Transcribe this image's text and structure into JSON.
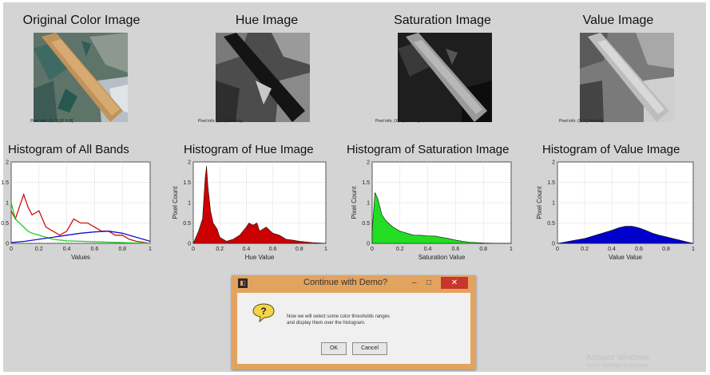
{
  "titles": {
    "original": "Original Color Image",
    "hue": "Hue Image",
    "saturation": "Saturation Image",
    "value": "Value Image"
  },
  "pixel_info": {
    "original": "Pixel info: (X, Y) [R G B]",
    "hue": "Pixel info: (X, Y) Intensity",
    "saturation": "Pixel info: (X, Y) Intensity",
    "value": "Pixel info: (X, Y) Intensity"
  },
  "chart_data": [
    {
      "type": "line",
      "title": "Histogram of All Bands",
      "xlabel": "Values",
      "ylabel": "",
      "xlim": [
        0,
        1
      ],
      "ylim": [
        0,
        2
      ],
      "xticks": [
        "0",
        "0.2",
        "0.4",
        "0.6",
        "0.8",
        "1"
      ],
      "yticks": [
        "0",
        "0.5",
        "1",
        "1.5",
        "2"
      ],
      "grid": true,
      "series": [
        {
          "color": "#cc1111",
          "x": [
            0.0,
            0.03,
            0.06,
            0.09,
            0.12,
            0.15,
            0.2,
            0.25,
            0.3,
            0.35,
            0.4,
            0.45,
            0.5,
            0.55,
            0.6,
            0.65,
            0.7,
            0.75,
            0.8,
            0.85,
            0.9,
            1.0
          ],
          "y": [
            0.8,
            0.6,
            0.9,
            1.2,
            0.9,
            0.7,
            0.8,
            0.4,
            0.3,
            0.2,
            0.3,
            0.6,
            0.5,
            0.5,
            0.4,
            0.3,
            0.3,
            0.2,
            0.2,
            0.1,
            0.05,
            0.0
          ]
        },
        {
          "color": "#22cc22",
          "x": [
            0.0,
            0.03,
            0.06,
            0.09,
            0.12,
            0.15,
            0.2,
            0.25,
            0.3,
            0.35,
            0.4,
            0.5,
            0.6,
            0.7,
            0.8,
            0.9,
            1.0
          ],
          "y": [
            1.0,
            0.6,
            0.5,
            0.4,
            0.3,
            0.25,
            0.2,
            0.15,
            0.1,
            0.08,
            0.06,
            0.05,
            0.04,
            0.03,
            0.02,
            0.01,
            0.0
          ]
        },
        {
          "color": "#1111cc",
          "x": [
            0.0,
            0.1,
            0.2,
            0.3,
            0.4,
            0.5,
            0.6,
            0.7,
            0.8,
            0.9,
            1.0
          ],
          "y": [
            0.02,
            0.05,
            0.1,
            0.15,
            0.2,
            0.25,
            0.28,
            0.3,
            0.25,
            0.15,
            0.05
          ]
        }
      ]
    },
    {
      "type": "area",
      "title": "Histogram of Hue Image",
      "xlabel": "Hue Value",
      "ylabel": "Pixel Count",
      "xlim": [
        0,
        1
      ],
      "ylim": [
        0,
        2
      ],
      "xticks": [
        "0",
        "0.2",
        "0.4",
        "0.6",
        "0.8",
        "1"
      ],
      "yticks": [
        "0",
        "0.5",
        "1",
        "1.5",
        "2"
      ],
      "grid": true,
      "series": [
        {
          "color": "#cc0000",
          "x": [
            0.0,
            0.04,
            0.07,
            0.09,
            0.1,
            0.11,
            0.13,
            0.15,
            0.18,
            0.2,
            0.25,
            0.3,
            0.35,
            0.4,
            0.42,
            0.45,
            0.48,
            0.5,
            0.55,
            0.6,
            0.65,
            0.7,
            0.75,
            0.8,
            0.9,
            1.0
          ],
          "y": [
            0.0,
            0.3,
            0.6,
            1.6,
            1.9,
            1.4,
            0.8,
            0.5,
            0.35,
            0.15,
            0.05,
            0.1,
            0.2,
            0.4,
            0.5,
            0.45,
            0.5,
            0.3,
            0.4,
            0.25,
            0.2,
            0.1,
            0.08,
            0.05,
            0.02,
            0.0
          ]
        }
      ]
    },
    {
      "type": "area",
      "title": "Histogram of Saturation Image",
      "xlabel": "Saturation Value",
      "ylabel": "Pixel Count",
      "xlim": [
        0,
        1
      ],
      "ylim": [
        0,
        2
      ],
      "xticks": [
        "0",
        "0.2",
        "0.4",
        "0.6",
        "0.8",
        "1"
      ],
      "yticks": [
        "0",
        "0.5",
        "1",
        "1.5",
        "2"
      ],
      "grid": true,
      "series": [
        {
          "color": "#22dd22",
          "x": [
            0.0,
            0.02,
            0.04,
            0.07,
            0.1,
            0.15,
            0.2,
            0.25,
            0.3,
            0.35,
            0.4,
            0.45,
            0.5,
            0.55,
            0.6,
            0.65,
            0.7,
            0.8,
            0.9,
            1.0
          ],
          "y": [
            0.3,
            1.25,
            1.1,
            0.7,
            0.55,
            0.4,
            0.3,
            0.25,
            0.2,
            0.2,
            0.18,
            0.18,
            0.15,
            0.12,
            0.08,
            0.05,
            0.03,
            0.01,
            0.0,
            0.0
          ]
        }
      ]
    },
    {
      "type": "area",
      "title": "Histogram of Value Image",
      "xlabel": "Value Value",
      "ylabel": "Pixel Count",
      "xlim": [
        0,
        1
      ],
      "ylim": [
        0,
        2
      ],
      "xticks": [
        "0",
        "0.2",
        "0.4",
        "0.6",
        "0.8",
        "1"
      ],
      "yticks": [
        "0",
        "0.5",
        "1",
        "1.5",
        "2"
      ],
      "grid": true,
      "series": [
        {
          "color": "#0000cc",
          "x": [
            0.0,
            0.05,
            0.1,
            0.2,
            0.3,
            0.4,
            0.45,
            0.5,
            0.55,
            0.6,
            0.65,
            0.7,
            0.75,
            0.8,
            0.85,
            0.9,
            0.95,
            1.0
          ],
          "y": [
            0.0,
            0.03,
            0.06,
            0.12,
            0.22,
            0.32,
            0.38,
            0.42,
            0.42,
            0.38,
            0.32,
            0.25,
            0.2,
            0.16,
            0.12,
            0.08,
            0.04,
            0.0
          ]
        }
      ]
    }
  ],
  "dialog": {
    "title": "Continue with Demo?",
    "message_line1": "Now we will select some color thresholds ranges",
    "message_line2": "and display them over the histogram.",
    "ok_label": "OK",
    "cancel_label": "Cancel",
    "question_glyph": "?",
    "minimize_glyph": "–",
    "maximize_glyph": "□",
    "close_glyph": "✕",
    "app_glyph": "◧"
  },
  "watermark": {
    "line1": "Activate Windows",
    "line2": "Go to Settings to activate"
  },
  "colors": {
    "figure_bg": "#d4d4d4",
    "dialog_frame": "#e2a35f",
    "close_button": "#c8352b"
  }
}
